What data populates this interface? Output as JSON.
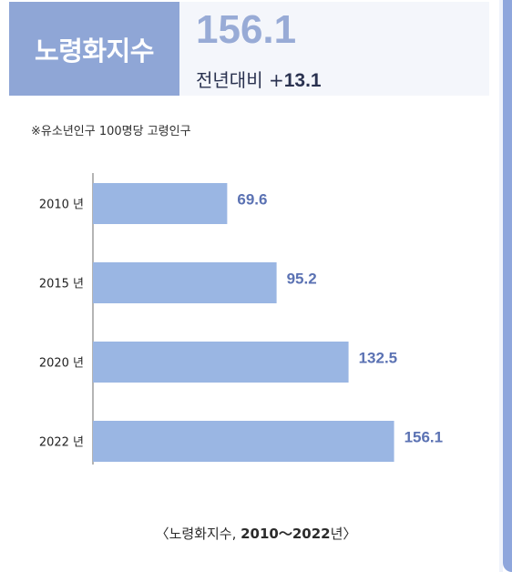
{
  "header": {
    "label": "노령화지수",
    "value": "156.1",
    "change_prefix": "전년대비 +",
    "change_value": "13.1"
  },
  "note": "※유소년인구 100명당 고령인구",
  "caption": {
    "prefix": "〈노령화지수, ",
    "years": "2010～2022",
    "suffix": "년〉"
  },
  "colors": {
    "bar": "#9ab6e3",
    "value_label": "#5b72b3",
    "header_box": "#8fa6d6",
    "header_value": "#98abd6",
    "side_accent": "#8ea6dc"
  },
  "chart_data": {
    "type": "bar",
    "orientation": "horizontal",
    "categories": [
      "2010 년",
      "2015 년",
      "2020 년",
      "2022 년"
    ],
    "values": [
      69.6,
      95.2,
      132.5,
      156.1
    ],
    "value_labels": [
      "69.6",
      "95.2",
      "132.5",
      "156.1"
    ],
    "xlim": [
      0,
      170
    ],
    "grid": false,
    "legend": "none"
  }
}
